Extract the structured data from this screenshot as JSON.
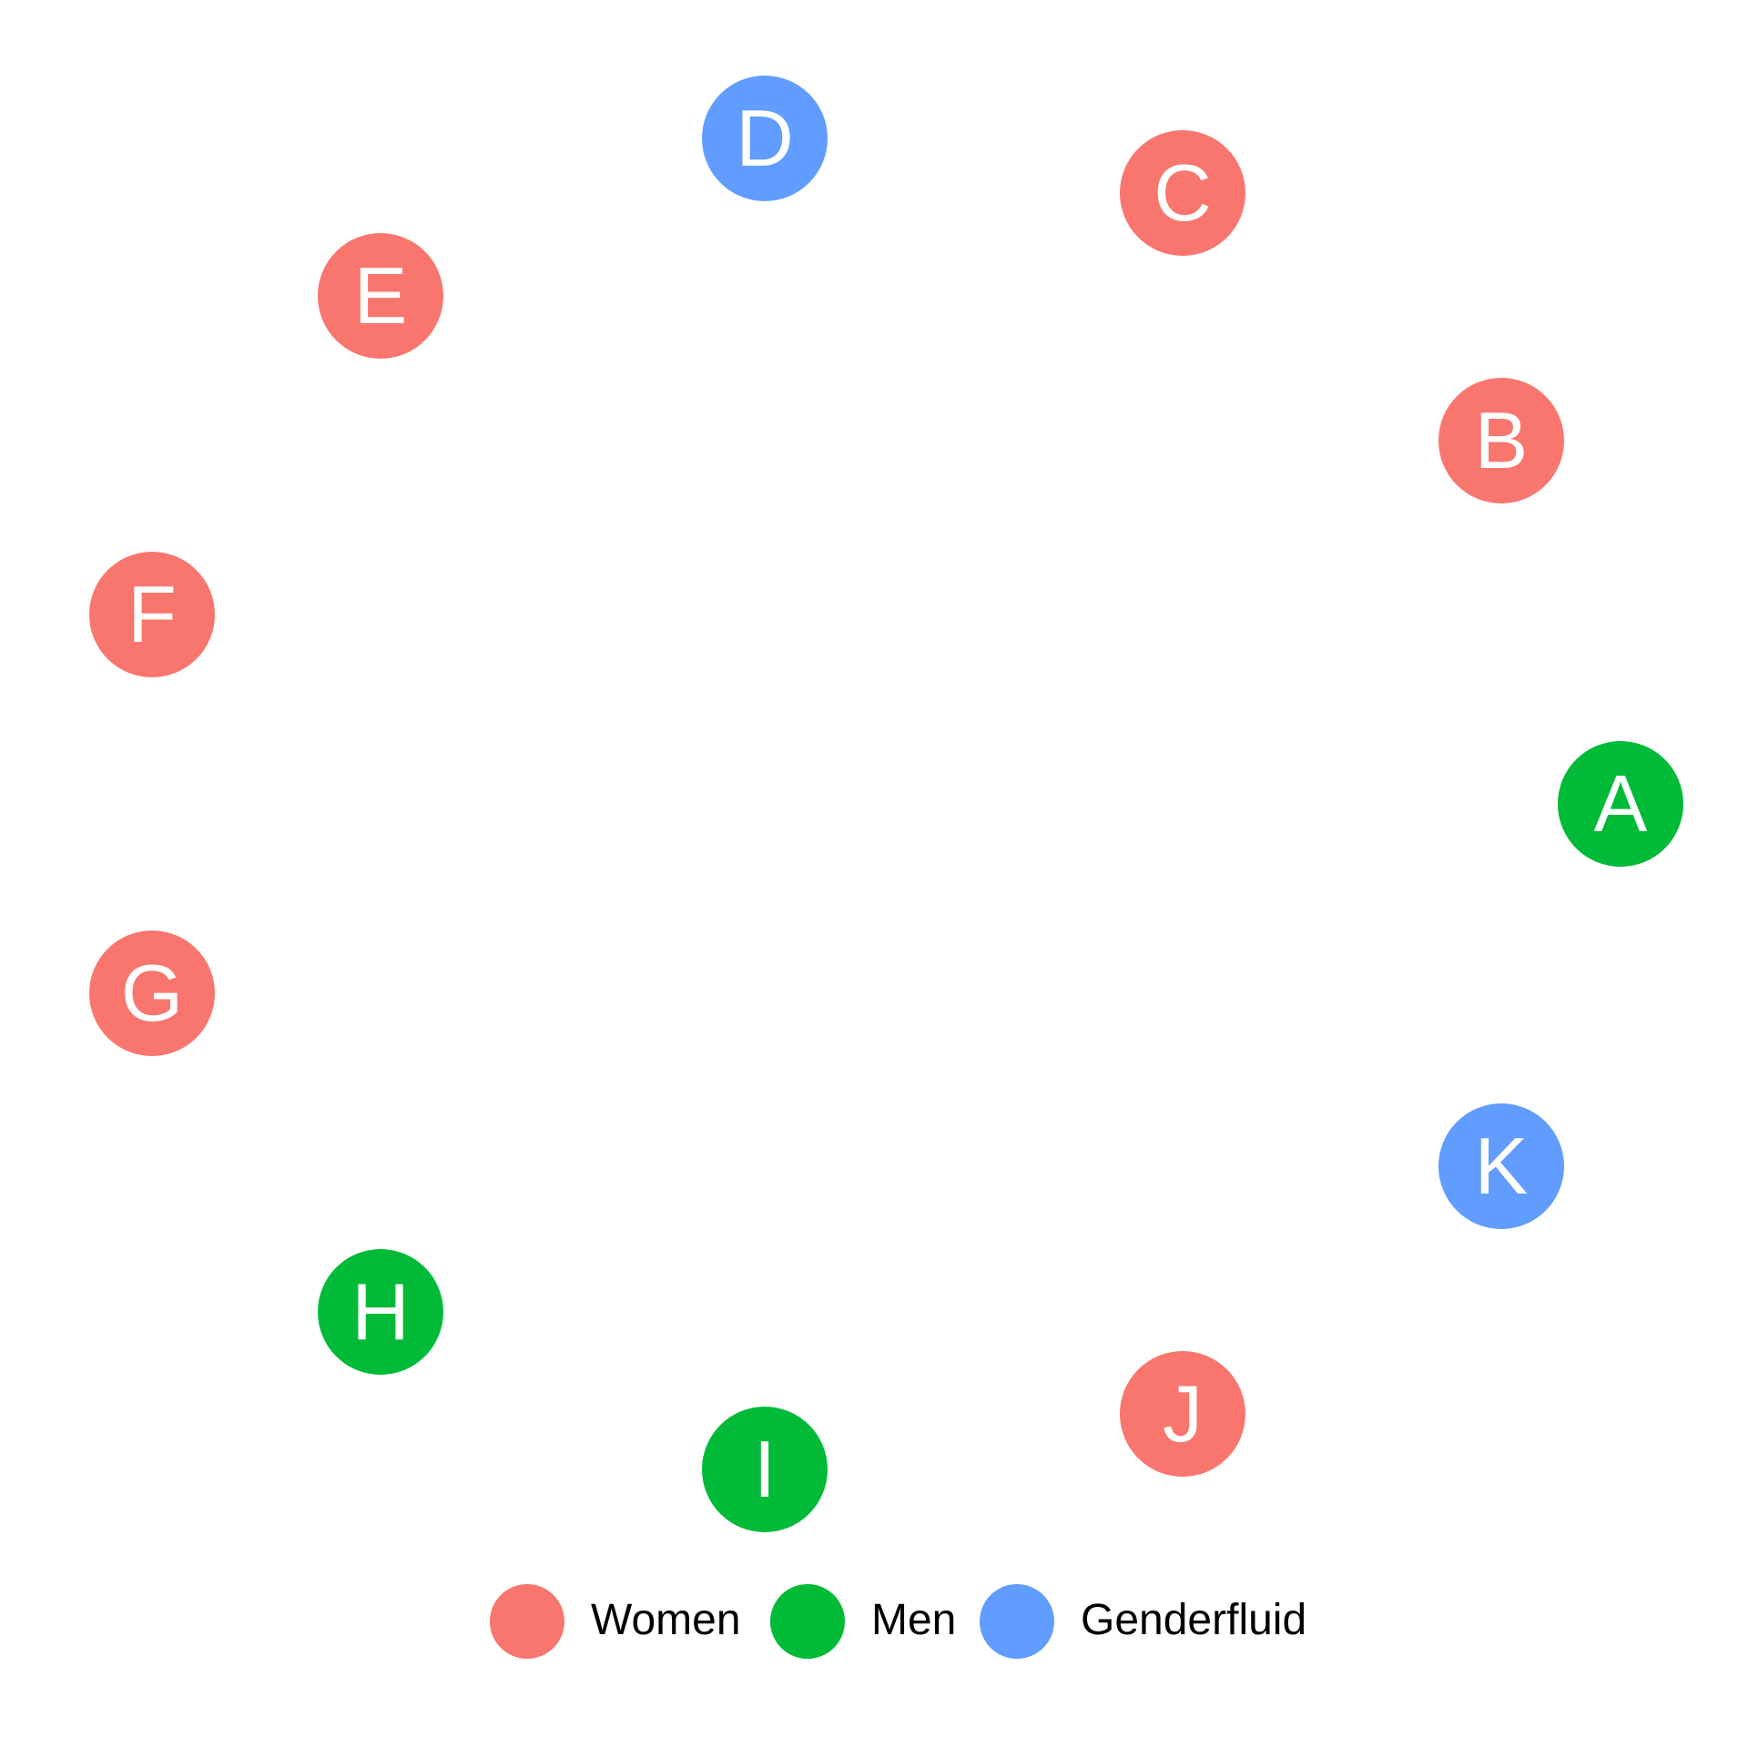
{
  "groups": [
    {
      "key": "women",
      "label": "Women",
      "color": "#F8766D"
    },
    {
      "key": "men",
      "label": "Men",
      "color": "#00BA38"
    },
    {
      "key": "genderfluid",
      "label": "Genderfluid",
      "color": "#619CFF"
    }
  ],
  "nodes": [
    {
      "label": "A",
      "group": "men"
    },
    {
      "label": "B",
      "group": "women"
    },
    {
      "label": "C",
      "group": "women"
    },
    {
      "label": "D",
      "group": "genderfluid"
    },
    {
      "label": "E",
      "group": "women"
    },
    {
      "label": "F",
      "group": "women"
    },
    {
      "label": "G",
      "group": "women"
    },
    {
      "label": "H",
      "group": "men"
    },
    {
      "label": "I",
      "group": "men"
    },
    {
      "label": "J",
      "group": "women"
    },
    {
      "label": "K",
      "group": "genderfluid"
    }
  ]
}
